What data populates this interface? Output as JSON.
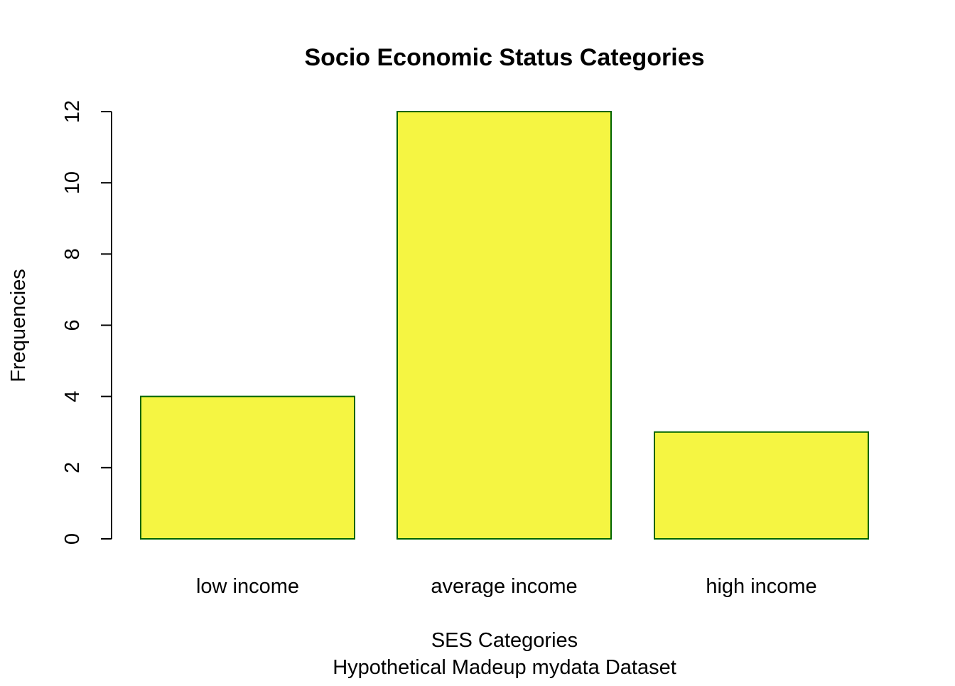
{
  "chart_data": {
    "type": "bar",
    "title": "Socio Economic Status Categories",
    "xlabel": "SES Categories",
    "xlabel_sub": "Hypothetical Madeup mydata Dataset",
    "ylabel": "Frequencies",
    "categories": [
      "low income",
      "average income",
      "high income"
    ],
    "values": [
      4,
      12,
      3
    ],
    "ylim": [
      0,
      12
    ],
    "yticks": [
      "0",
      "2",
      "4",
      "6",
      "8",
      "10",
      "12"
    ],
    "grid": false,
    "legend": "none",
    "bar_fill": "#F5F542",
    "bar_stroke": "#006400"
  }
}
